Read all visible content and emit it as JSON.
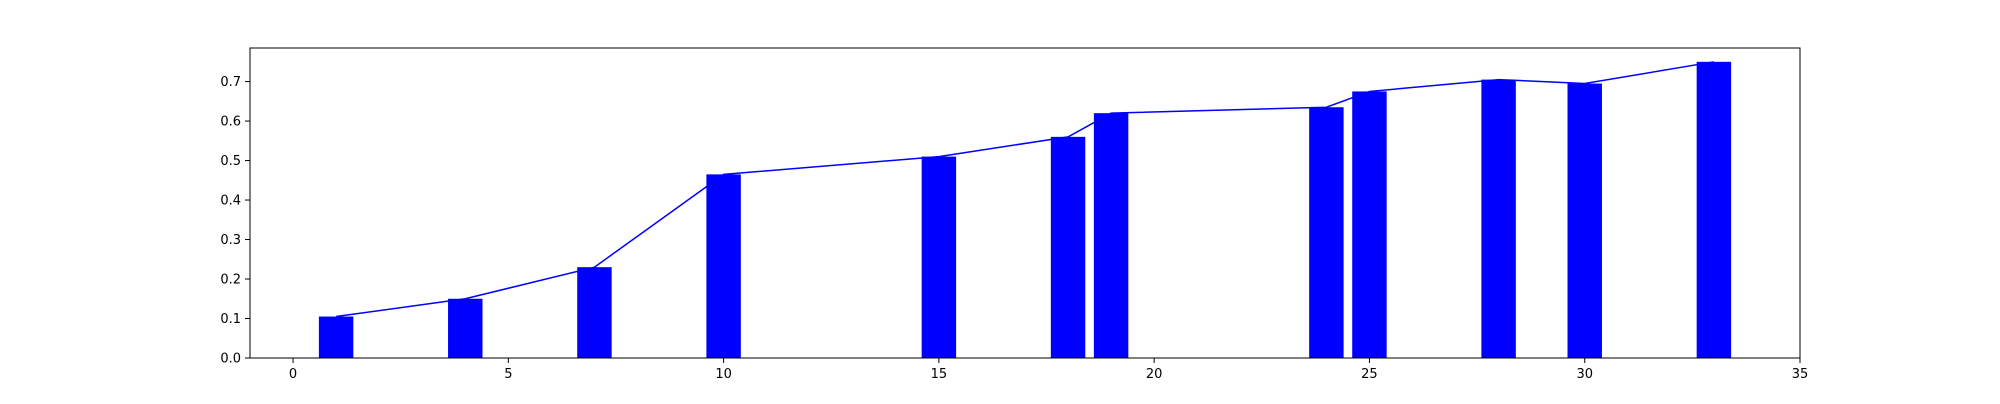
{
  "chart_data": {
    "type": "bar",
    "title": "",
    "xlabel": "",
    "ylabel": "",
    "xlim": [
      -1,
      35
    ],
    "ylim": [
      0,
      0.785
    ],
    "xticks": [
      0,
      5,
      10,
      15,
      20,
      25,
      30,
      35
    ],
    "yticks": [
      0.0,
      0.1,
      0.2,
      0.3,
      0.4,
      0.5,
      0.6,
      0.7
    ],
    "x": [
      1,
      4,
      7,
      10,
      15,
      18,
      19,
      24,
      25,
      28,
      30,
      33
    ],
    "values": [
      0.105,
      0.15,
      0.23,
      0.465,
      0.51,
      0.56,
      0.62,
      0.635,
      0.675,
      0.705,
      0.695,
      0.75
    ],
    "bar_width": 0.8,
    "line_overlay": true,
    "grid": false,
    "colors": {
      "bar": "#0000ff",
      "line": "#0000ff",
      "axes": "#000000"
    }
  }
}
